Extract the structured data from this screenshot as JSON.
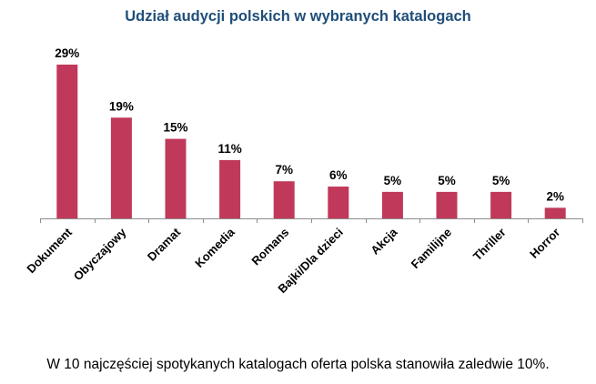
{
  "chart_data": {
    "type": "bar",
    "title": "Udział audycji polskich w wybranych katalogach",
    "categories": [
      "Dokument",
      "Obyczajowy",
      "Dramat",
      "Komedia",
      "Romans",
      "Bajki/Dla dzieci",
      "Akcja",
      "Familijne",
      "Thriller",
      "Horror"
    ],
    "values": [
      29,
      19,
      15,
      11,
      7,
      6,
      5,
      5,
      5,
      2
    ],
    "value_labels": [
      "29%",
      "19%",
      "15%",
      "11%",
      "7%",
      "6%",
      "5%",
      "5%",
      "5%",
      "2%"
    ],
    "unit": "%",
    "xlabel": "",
    "ylabel": "",
    "ylim": [
      0,
      30
    ],
    "grid": false,
    "legend": "none",
    "bar_color": "#c0395a"
  },
  "caption": "W 10 najczęściej spotykanych katalogach oferta polska stanowiła zaledwie 10%."
}
